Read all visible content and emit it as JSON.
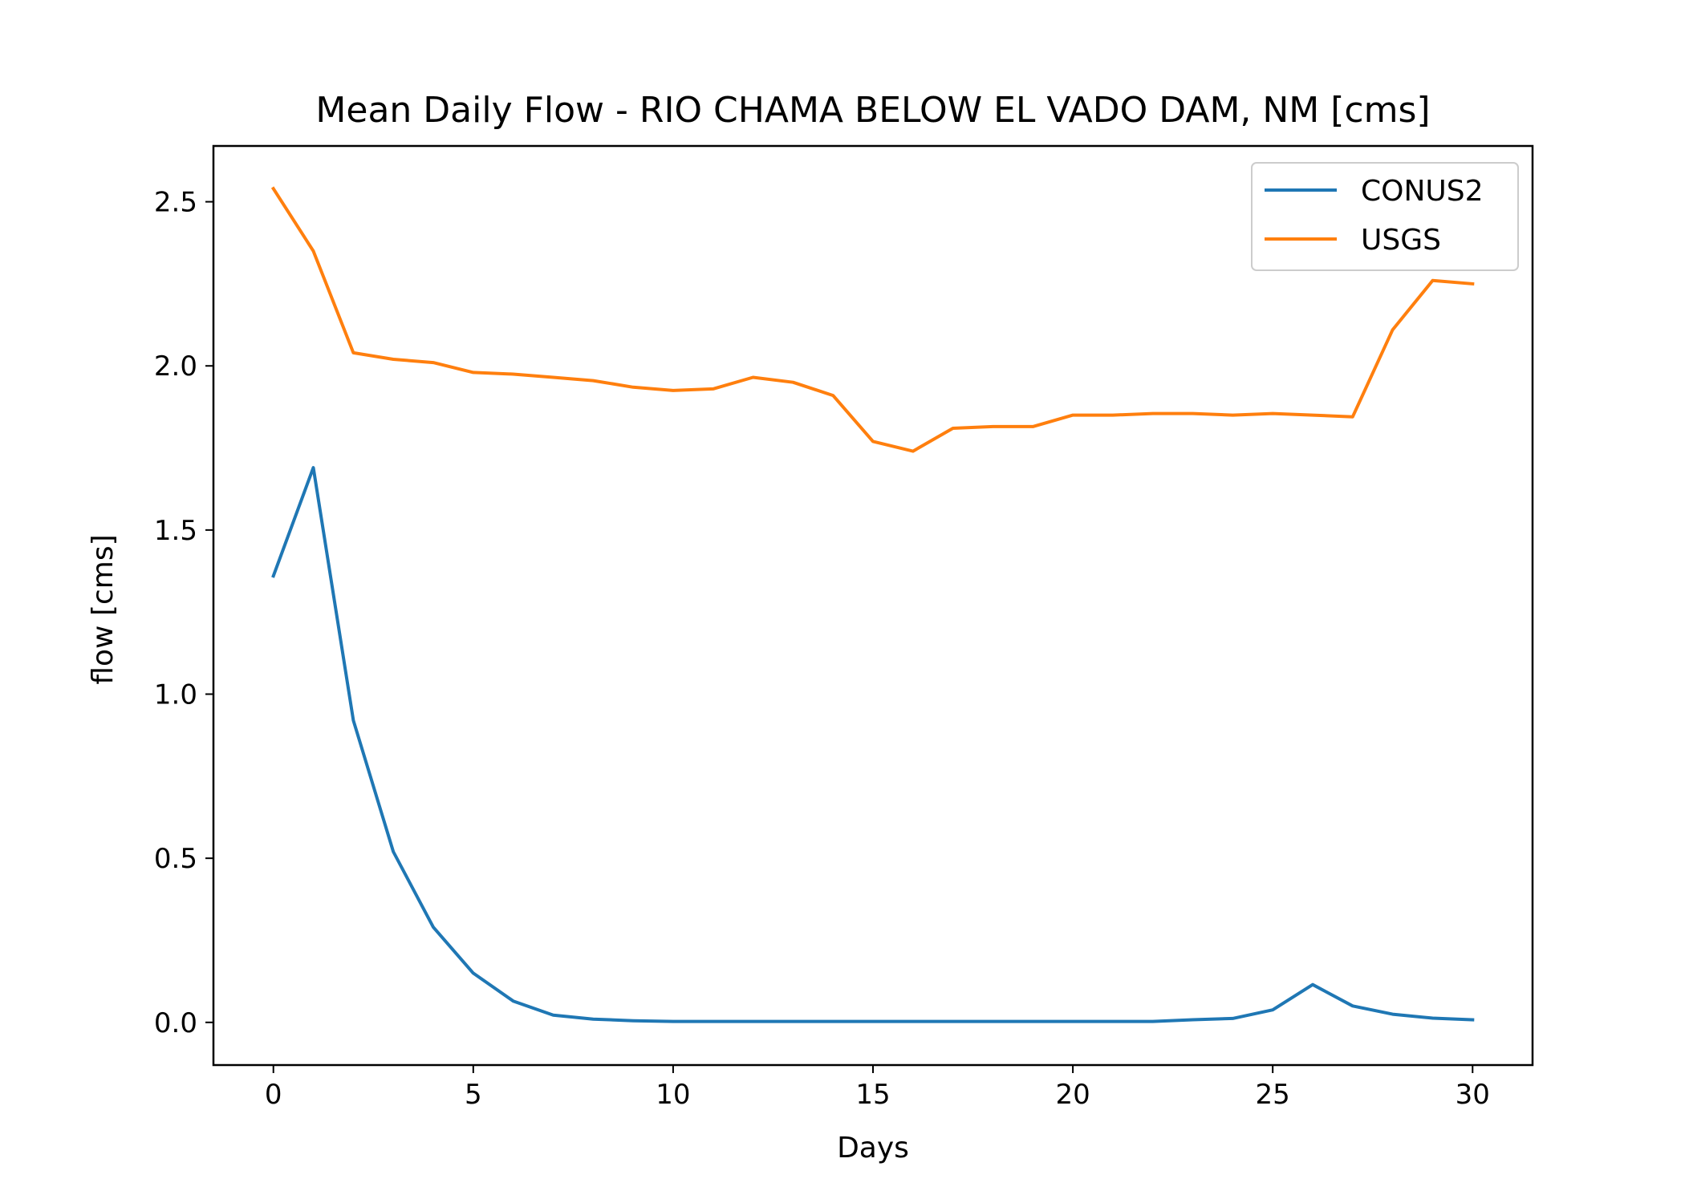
{
  "chart_data": {
    "type": "line",
    "title": "Mean Daily Flow - RIO CHAMA BELOW EL VADO DAM, NM [cms]",
    "xlabel": "Days",
    "ylabel": "flow [cms]",
    "xlim": [
      -1.5,
      31.5
    ],
    "ylim": [
      -0.13,
      2.67
    ],
    "xticks": [
      0,
      5,
      10,
      15,
      20,
      25,
      30
    ],
    "xtick_labels": [
      "0",
      "5",
      "10",
      "15",
      "20",
      "25",
      "30"
    ],
    "yticks": [
      0.0,
      0.5,
      1.0,
      1.5,
      2.0,
      2.5
    ],
    "ytick_labels": [
      "0.0",
      "0.5",
      "1.0",
      "1.5",
      "2.0",
      "2.5"
    ],
    "grid": false,
    "legend_position": "top-right",
    "x": [
      0,
      1,
      2,
      3,
      4,
      5,
      6,
      7,
      8,
      9,
      10,
      11,
      12,
      13,
      14,
      15,
      16,
      17,
      18,
      19,
      20,
      21,
      22,
      23,
      24,
      25,
      26,
      27,
      28,
      29,
      30
    ],
    "series": [
      {
        "name": "CONUS2",
        "color": "#1f77b4",
        "values": [
          1.36,
          1.69,
          0.92,
          0.52,
          0.29,
          0.15,
          0.065,
          0.022,
          0.01,
          0.005,
          0.003,
          0.003,
          0.003,
          0.003,
          0.003,
          0.003,
          0.003,
          0.003,
          0.003,
          0.003,
          0.003,
          0.003,
          0.003,
          0.008,
          0.012,
          0.038,
          0.115,
          0.05,
          0.025,
          0.013,
          0.008
        ]
      },
      {
        "name": "USGS",
        "color": "#ff7f0e",
        "values": [
          2.54,
          2.35,
          2.04,
          2.02,
          2.01,
          1.98,
          1.975,
          1.965,
          1.955,
          1.935,
          1.925,
          1.93,
          1.965,
          1.95,
          1.91,
          1.77,
          1.74,
          1.81,
          1.815,
          1.815,
          1.85,
          1.85,
          1.855,
          1.855,
          1.85,
          1.855,
          1.85,
          1.845,
          2.11,
          2.26,
          2.25
        ]
      }
    ]
  }
}
